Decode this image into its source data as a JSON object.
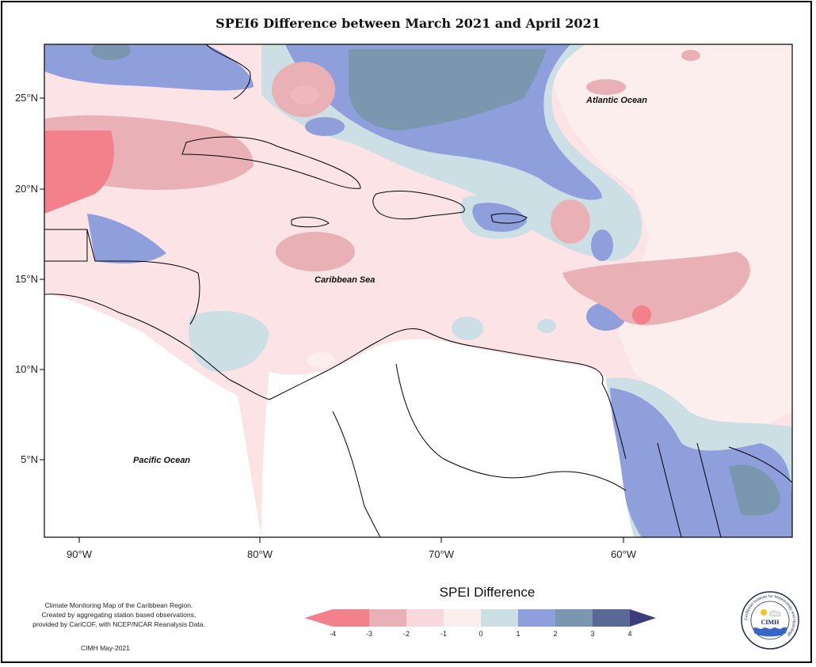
{
  "title": "SPEI6 Difference between March 2021 and April 2021",
  "axes": {
    "lat_ticks": [
      "25°N",
      "20°N",
      "15°N",
      "10°N",
      "5°N"
    ],
    "lon_ticks": [
      "90°W",
      "80°W",
      "70°W",
      "60°W"
    ]
  },
  "places": {
    "atlantic": "Atlantic Ocean",
    "caribbean": "Caribbean Sea",
    "pacific": "Pacific Ocean"
  },
  "legend": {
    "title": "SPEI Difference",
    "ticks": [
      "-4",
      "-3",
      "-2",
      "-1",
      "0",
      "1",
      "2",
      "3",
      "4"
    ],
    "colors": [
      "#f2818c",
      "#e9b1b6",
      "#f9d8dd",
      "#fdeeee",
      "#ccdfe4",
      "#8e9fdc",
      "#7b97b0",
      "#5a6895",
      "#3e3c7c"
    ]
  },
  "credits": {
    "line1": "Climate Monitoring Map of the Caribbean Region.",
    "line2": "Created by aggregating station based observations,",
    "line3": "provided by CariCOF, with NCEP/NCAR Reanalysis Data.",
    "stamp": "CIMH May-2021"
  },
  "logo": {
    "abbr": "CIMH",
    "ring_text": "Caribbean Institute for Meteorology and Hydrology"
  }
}
